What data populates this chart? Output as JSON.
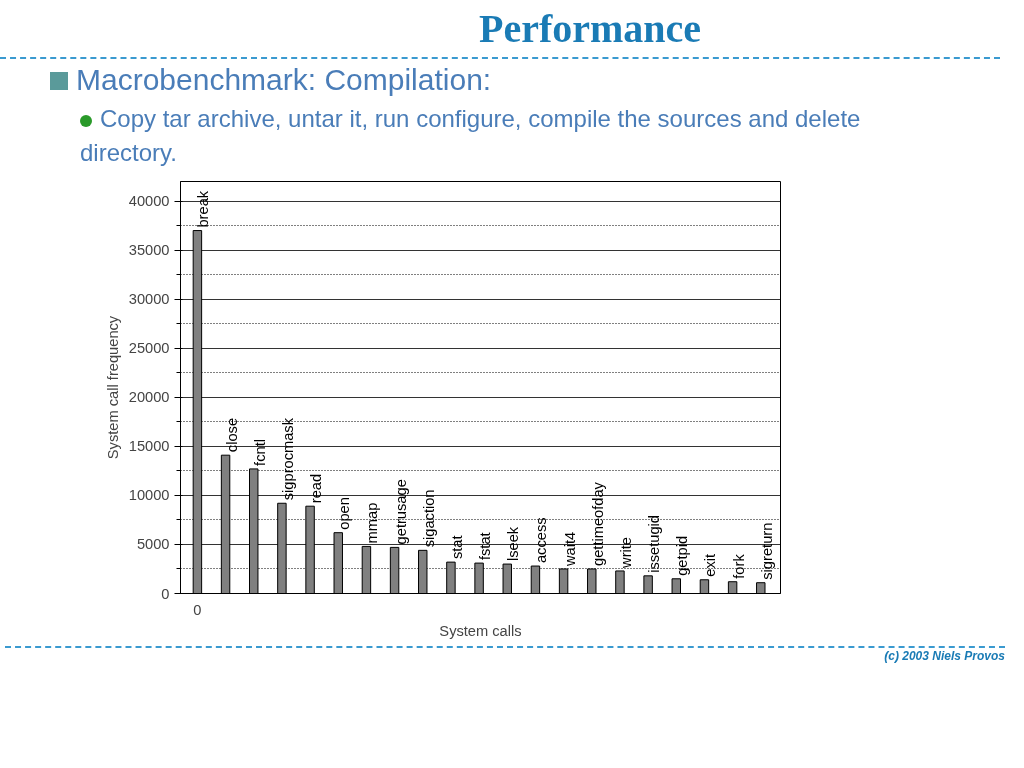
{
  "chart_data": {
    "type": "bar",
    "title": "Performance",
    "subtitle": "Macrobenchmark: Compilation:",
    "annotations": [
      "Copy tar archive, untar it, run configure, compile the sources and delete directory.",
      "0",
      "(c) 2003 Niels Provos"
    ],
    "xlabel": "System calls",
    "ylabel": "System call frequency",
    "categories": [
      "break",
      "close",
      "fcntl",
      "sigprocmask",
      "read",
      "open",
      "mmap",
      "getrusage",
      "sigaction",
      "stat",
      "fstat",
      "lseek",
      "access",
      "wait4",
      "gettimeofday",
      "write",
      "issetugid",
      "getpid",
      "exit",
      "fork",
      "sigreturn"
    ],
    "values": [
      37000,
      14100,
      12700,
      9200,
      8900,
      6200,
      4800,
      4700,
      4400,
      3200,
      3100,
      3000,
      2800,
      2500,
      2500,
      2300,
      1800,
      1500,
      1400,
      1200,
      1100
    ],
    "color": "#808080",
    "ylim": [
      0,
      42000
    ],
    "yticks": [
      0,
      5000,
      10000,
      15000,
      20000,
      25000,
      30000,
      35000,
      40000
    ],
    "grid": "y"
  }
}
